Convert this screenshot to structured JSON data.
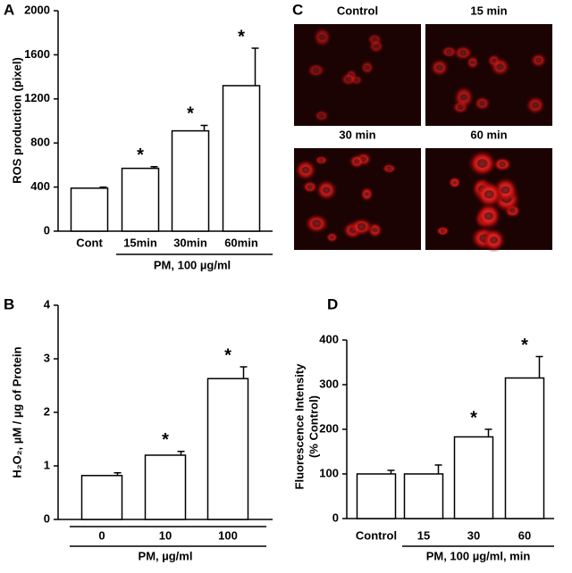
{
  "chart_data": [
    {
      "type": "bar",
      "panel": "A",
      "ylabel": [
        "ROS production (pixel)"
      ],
      "categories": [
        "Cont",
        "15min",
        "30min",
        "60min"
      ],
      "values": [
        390,
        570,
        910,
        1320
      ],
      "errors": [
        10,
        15,
        50,
        340
      ],
      "annotations": [
        null,
        "*",
        "*",
        "*"
      ],
      "xlabel": "PM, 100 µg/ml",
      "ylim": [
        0,
        2000
      ],
      "yticks": [
        0,
        400,
        800,
        1200,
        1600,
        2000
      ],
      "color": "#ffffff"
    },
    {
      "type": "bar",
      "panel": "B",
      "ylabel": [
        "H₂O₂, µM / µg of Protein"
      ],
      "categories": [
        "0",
        "10",
        "100"
      ],
      "values": [
        0.82,
        1.2,
        2.63
      ],
      "errors": [
        0.05,
        0.07,
        0.22
      ],
      "annotations": [
        null,
        "*",
        "*"
      ],
      "xlabel": "PM, µg/ml",
      "ylim": [
        0,
        4
      ],
      "yticks": [
        0,
        1,
        2,
        3,
        4
      ],
      "color": "#ffffff"
    },
    {
      "type": "bar",
      "panel": "D",
      "ylabel": [
        "Fluorescence Intensity",
        "(% Control)"
      ],
      "categories": [
        "Control",
        "15",
        "30",
        "60"
      ],
      "values": [
        100,
        100,
        183,
        315
      ],
      "errors": [
        8,
        20,
        17,
        48
      ],
      "annotations": [
        null,
        null,
        "*",
        "*"
      ],
      "xlabel": "PM, 100 µg/ml, min",
      "ylim": [
        0,
        400
      ],
      "yticks": [
        0,
        100,
        200,
        300,
        400
      ],
      "color": "#ffffff"
    }
  ],
  "image_panel": {
    "panel": "C",
    "labels": [
      "Control",
      "15 min",
      "30 min",
      "60 min"
    ]
  }
}
